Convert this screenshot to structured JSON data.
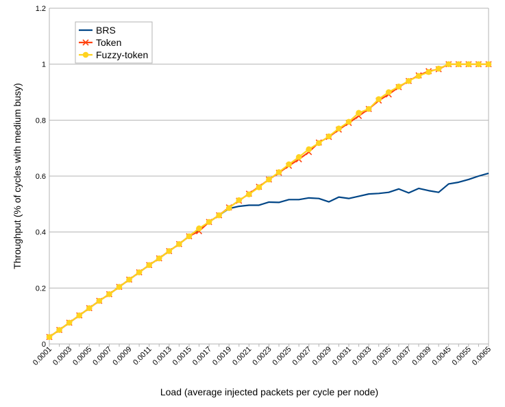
{
  "chart_data": {
    "type": "line",
    "title": "",
    "xlabel": "Load (average injected packets per cycle per node)",
    "ylabel": "Throughput (% of cycles with medium busy)",
    "ylim": [
      0,
      1.2
    ],
    "yticks": [
      "0",
      "0.2",
      "0.4",
      "0.6",
      "0.8",
      "1",
      "1.2"
    ],
    "grid": "horizontal",
    "legend_position": "top-left",
    "x": [
      "0.0001",
      "0.0002",
      "0.0003",
      "0.0004",
      "0.0005",
      "0.0006",
      "0.0007",
      "0.0008",
      "0.0009",
      "0.001",
      "0.0011",
      "0.0012",
      "0.0013",
      "0.0014",
      "0.0015",
      "0.0016",
      "0.0017",
      "0.0018",
      "0.0019",
      "0.002",
      "0.0021",
      "0.0022",
      "0.0023",
      "0.0024",
      "0.0025",
      "0.0026",
      "0.0027",
      "0.0028",
      "0.0029",
      "0.003",
      "0.0031",
      "0.0032",
      "0.0033",
      "0.0034",
      "0.0035",
      "0.0036",
      "0.0037",
      "0.0038",
      "0.0039",
      "0.004",
      "0.0045",
      "0.005",
      "0.0055",
      "0.006",
      "0.0065"
    ],
    "xtick_labels": [
      "0.0001",
      "0.0003",
      "0.0005",
      "0.0007",
      "0.0009",
      "0.0011",
      "0.0013",
      "0.0015",
      "0.0017",
      "0.0019",
      "0.0021",
      "0.0023",
      "0.0025",
      "0.0027",
      "0.0029",
      "0.0031",
      "0.0033",
      "0.0035",
      "0.0037",
      "0.0039",
      "0.0045",
      "0.0055",
      "0.0065"
    ],
    "series": [
      {
        "name": "BRS",
        "color": "#004586",
        "marker": "none",
        "values": [
          0.025,
          0.05,
          0.076,
          0.102,
          0.128,
          0.154,
          0.178,
          0.204,
          0.23,
          0.256,
          0.282,
          0.306,
          0.332,
          0.357,
          0.385,
          0.41,
          0.436,
          0.46,
          0.484,
          0.492,
          0.496,
          0.496,
          0.507,
          0.506,
          0.516,
          0.516,
          0.522,
          0.52,
          0.508,
          0.525,
          0.52,
          0.528,
          0.536,
          0.538,
          0.542,
          0.554,
          0.54,
          0.556,
          0.548,
          0.542,
          0.572,
          0.578,
          0.588,
          0.6,
          0.61
        ]
      },
      {
        "name": "Token",
        "color": "#ff420e",
        "marker": "x",
        "values": [
          0.025,
          0.05,
          0.076,
          0.102,
          0.128,
          0.154,
          0.178,
          0.204,
          0.23,
          0.256,
          0.282,
          0.306,
          0.332,
          0.357,
          0.385,
          0.403,
          0.436,
          0.46,
          0.488,
          0.512,
          0.537,
          0.562,
          0.588,
          0.612,
          0.637,
          0.66,
          0.686,
          0.72,
          0.74,
          0.766,
          0.79,
          0.815,
          0.84,
          0.87,
          0.892,
          0.918,
          0.94,
          0.96,
          0.975,
          0.982,
          1.0,
          1.0,
          1.0,
          1.0,
          1.0
        ]
      },
      {
        "name": "Fuzzy-token",
        "color": "#ffd320",
        "marker": "circle",
        "values": [
          0.025,
          0.05,
          0.076,
          0.102,
          0.128,
          0.154,
          0.178,
          0.204,
          0.23,
          0.256,
          0.282,
          0.306,
          0.332,
          0.357,
          0.385,
          0.413,
          0.436,
          0.46,
          0.486,
          0.514,
          0.535,
          0.56,
          0.588,
          0.614,
          0.642,
          0.668,
          0.696,
          0.718,
          0.742,
          0.77,
          0.794,
          0.826,
          0.84,
          0.875,
          0.9,
          0.92,
          0.94,
          0.958,
          0.972,
          0.984,
          1.0,
          1.0,
          1.0,
          1.0,
          1.0
        ]
      }
    ]
  }
}
